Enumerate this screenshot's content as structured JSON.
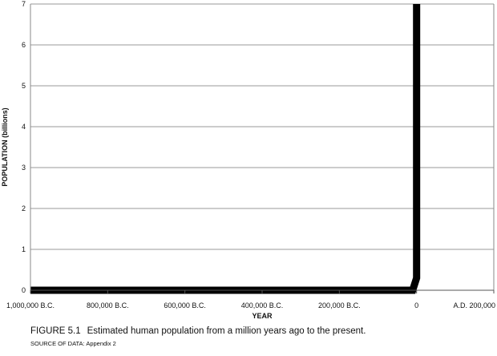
{
  "chart_data": {
    "type": "line",
    "title": "",
    "xlabel": "YEAR",
    "ylabel": "POPULATION (billions)",
    "xlim": [
      -1000000,
      200000
    ],
    "ylim": [
      0,
      7
    ],
    "x_ticks": [
      {
        "value": -1000000,
        "label": "1,000,000 B.C."
      },
      {
        "value": -800000,
        "label": "800,000 B.C."
      },
      {
        "value": -600000,
        "label": "600,000 B.C."
      },
      {
        "value": -400000,
        "label": "400,000 B.C."
      },
      {
        "value": -200000,
        "label": "200,000 B.C."
      },
      {
        "value": 0,
        "label": "0"
      },
      {
        "value": 200000,
        "label": "A.D. 200,000"
      }
    ],
    "y_ticks": [
      0,
      1,
      2,
      3,
      4,
      5,
      6,
      7
    ],
    "grid": "horizontal",
    "series": [
      {
        "color": "#000000",
        "x": [
          -1000000,
          -10000,
          0,
          0
        ],
        "y": [
          0,
          0,
          0.3,
          7
        ]
      }
    ]
  },
  "caption": {
    "figure_number": "FIGURE 5.1",
    "text": "Estimated human population from a million years ago to the present."
  },
  "source": "SOURCE OF DATA: Appendix 2"
}
